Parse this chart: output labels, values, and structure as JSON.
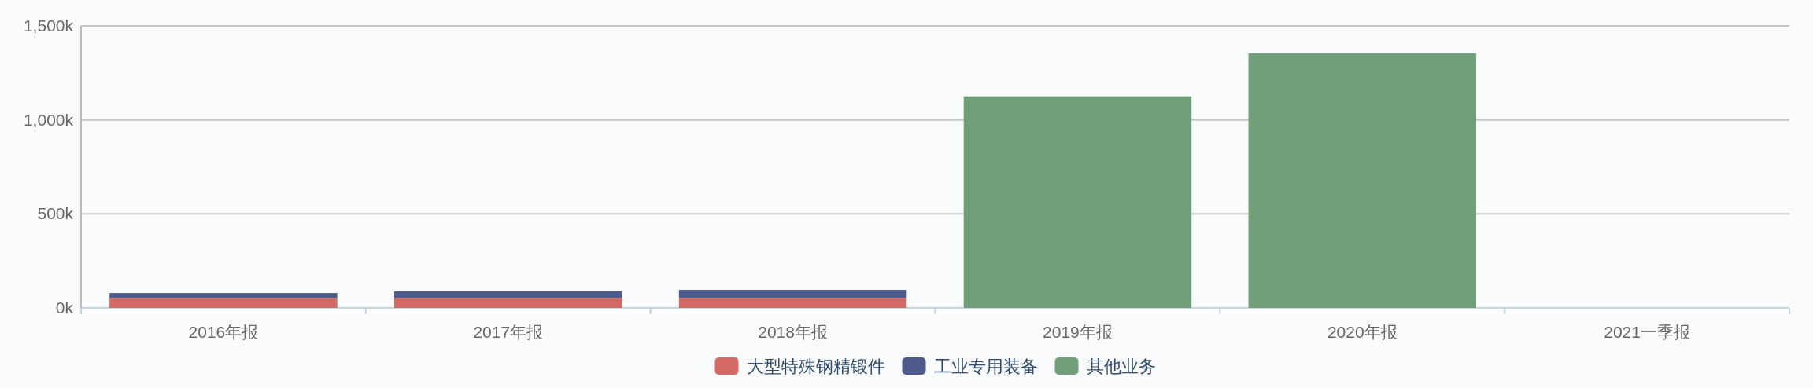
{
  "chart_data": {
    "type": "bar",
    "stacked": true,
    "categories": [
      "2016年报",
      "2017年报",
      "2018年报",
      "2019年报",
      "2020年报",
      "2021一季报"
    ],
    "series": [
      {
        "name": "大型特殊钢精锻件",
        "color": "#d36a65",
        "values": [
          52,
          52,
          52,
          null,
          null,
          null
        ]
      },
      {
        "name": "工业专用装备",
        "color": "#4e5a8c",
        "values": [
          27,
          36,
          44,
          null,
          null,
          null
        ]
      },
      {
        "name": "其他业务",
        "color": "#709f79",
        "values": [
          null,
          null,
          null,
          1125,
          1355,
          null
        ]
      }
    ],
    "ylim": [
      0,
      1500
    ],
    "yticks": [
      {
        "value": 0,
        "label": "0k"
      },
      {
        "value": 500,
        "label": "500k"
      },
      {
        "value": 1000,
        "label": "1,000k"
      },
      {
        "value": 1500,
        "label": "1,500k"
      }
    ],
    "grid": "y",
    "legend": "bottom"
  }
}
